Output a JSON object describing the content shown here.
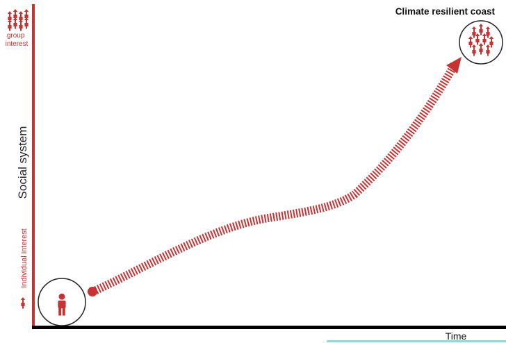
{
  "top_group_label": "group\ninterest",
  "bottom_label": "Individual interest",
  "y_axis_label": "Social system",
  "x_axis_label": "Time",
  "goal_label": "Climate resilient coast",
  "colors": {
    "accent": "#c73232",
    "axis": "#000000",
    "text": "#222222",
    "teal": "#9ad6d8"
  },
  "icons": {
    "top_group": "group-of-people-icon",
    "individual_small": "single-person-icon",
    "start_node": "single-person-icon",
    "goal_node": "group-of-people-icon"
  }
}
